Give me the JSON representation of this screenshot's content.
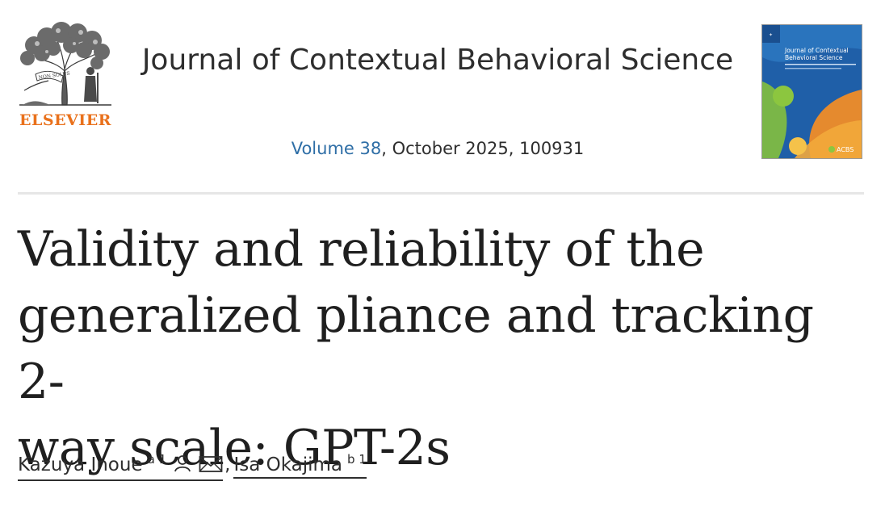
{
  "publisher": {
    "name": "ELSEVIER",
    "logo_motto": "NON SOLUS",
    "accent_color": "#e9711c"
  },
  "journal": {
    "title": "Journal of Contextual Behavioral Science",
    "volume_link": "Volume 38",
    "issue_rest": ", October 2025, 100931",
    "link_color": "#2e6ea6",
    "cover_title_line1": "Journal of Contextual",
    "cover_title_line2": "Behavioral Science",
    "cover_badge": "ACBS"
  },
  "article": {
    "title_line1": "Validity and reliability of the",
    "title_line2": "generalized pliance and tracking 2-",
    "title_line3": "way scale: GPT-2s"
  },
  "authors": [
    {
      "name": "Kazuya Inoue",
      "affil": "a 1",
      "icons": [
        "person-icon",
        "envelope-icon"
      ]
    },
    {
      "name": "Isa Okajima",
      "affil": "b 1",
      "icons": []
    }
  ],
  "author_separator": ","
}
